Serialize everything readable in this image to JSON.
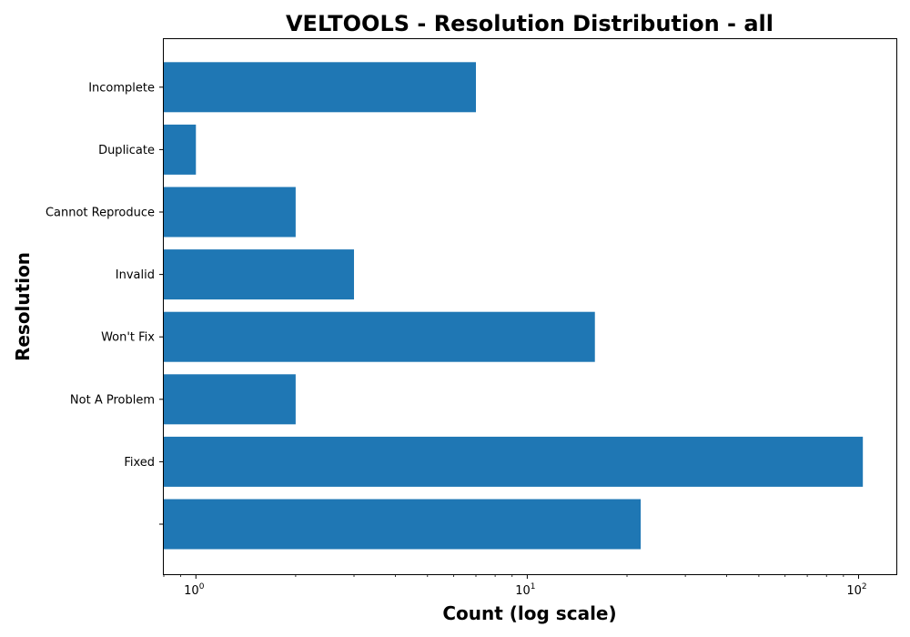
{
  "chart_data": {
    "type": "bar",
    "orientation": "horizontal",
    "title": "VELTOOLS - Resolution Distribution - all",
    "xlabel": "Count (log scale)",
    "ylabel": "Resolution",
    "x_scale": "log",
    "xlim": [
      0.8,
      130
    ],
    "x_ticks": [
      {
        "value": 1,
        "base": "10",
        "exp": "0"
      },
      {
        "value": 10,
        "base": "10",
        "exp": "1"
      },
      {
        "value": 100,
        "base": "10",
        "exp": "2"
      }
    ],
    "categories": [
      "",
      "Fixed",
      "Not A Problem",
      "Won't Fix",
      "Invalid",
      "Cannot Reproduce",
      "Duplicate",
      "Incomplete"
    ],
    "values": [
      22,
      103,
      2,
      16,
      3,
      2,
      1,
      7
    ],
    "bar_color": "#1f77b4",
    "grid": false,
    "legend": "none"
  }
}
